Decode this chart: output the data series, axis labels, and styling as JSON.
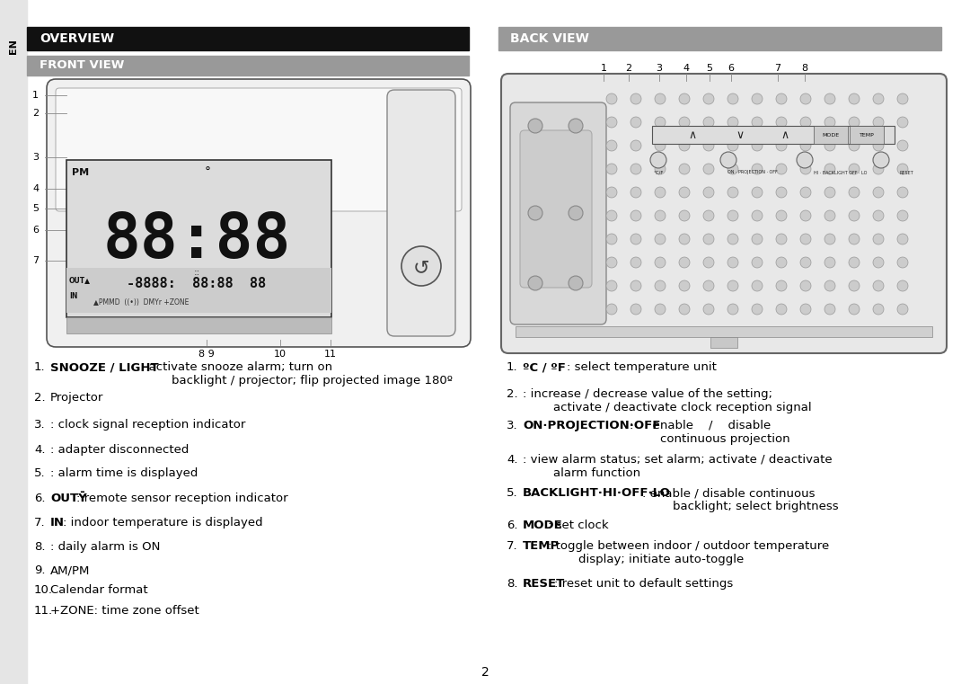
{
  "page_bg": "#ffffff",
  "sidebar_color": "#e5e5e5",
  "overview_bg": "#111111",
  "overview_fg": "#ffffff",
  "overview_text": "OVERVIEW",
  "frontview_bg": "#999999",
  "frontview_fg": "#ffffff",
  "frontview_text": "FRONT VIEW",
  "backview_bg": "#999999",
  "backview_fg": "#ffffff",
  "backview_text": "BACK VIEW",
  "en_text": "EN",
  "page_number": "2",
  "left_items": [
    [
      "1.",
      "SNOOZE / LIGHT",
      ": activate snooze alarm; turn on\n        backlight / projector; flip projected image 180º"
    ],
    [
      "2.",
      "",
      "Projector"
    ],
    [
      "3.",
      "",
      ": clock signal reception indicator"
    ],
    [
      "4.",
      "",
      ": adapter disconnected"
    ],
    [
      "5.",
      "",
      ": alarm time is displayed"
    ],
    [
      "6.",
      "OUTȲ",
      ": remote sensor reception indicator"
    ],
    [
      "7.",
      "IN",
      ": indoor temperature is displayed"
    ],
    [
      "8.",
      "",
      ": daily alarm is ON"
    ],
    [
      "9.",
      "",
      "AM/PM"
    ],
    [
      "10.",
      "",
      "Calendar format"
    ],
    [
      "11.",
      "",
      "+ZONE: time zone offset"
    ]
  ],
  "right_items": [
    [
      "1.",
      "ºC / ºF",
      ": select temperature unit"
    ],
    [
      "2.",
      "",
      ": increase / decrease value of the setting;\n        activate / deactivate clock reception signal"
    ],
    [
      "3.",
      "ON·PROJECTION·OFF",
      ":     enable    /    disable\n        continuous projection"
    ],
    [
      "4.",
      "",
      ": view alarm status; set alarm; activate / deactivate\n        alarm function"
    ],
    [
      "5.",
      "BACKLIGHT·HI·OFF·LO",
      ": enable / disable continuous\n        backlight; select brightness"
    ],
    [
      "6.",
      "MODE",
      ": set clock"
    ],
    [
      "7.",
      "TEMP",
      ": toggle between indoor / outdoor temperature\n        display; initiate auto-toggle"
    ],
    [
      "8.",
      "RESET",
      ": reset unit to default settings"
    ]
  ],
  "front_side_nums": [
    "1",
    "2",
    "3",
    "4",
    "5",
    "6",
    "7"
  ],
  "front_bot_nums": [
    [
      "8 9",
      230
    ],
    [
      "10",
      312
    ],
    [
      "11",
      368
    ]
  ],
  "back_top_nums": [
    [
      "1",
      672
    ],
    [
      "2",
      700
    ],
    [
      "3",
      734
    ],
    [
      "4",
      764
    ],
    [
      "5",
      790
    ],
    [
      "6",
      814
    ],
    [
      "7",
      866
    ],
    [
      "8",
      896
    ]
  ]
}
